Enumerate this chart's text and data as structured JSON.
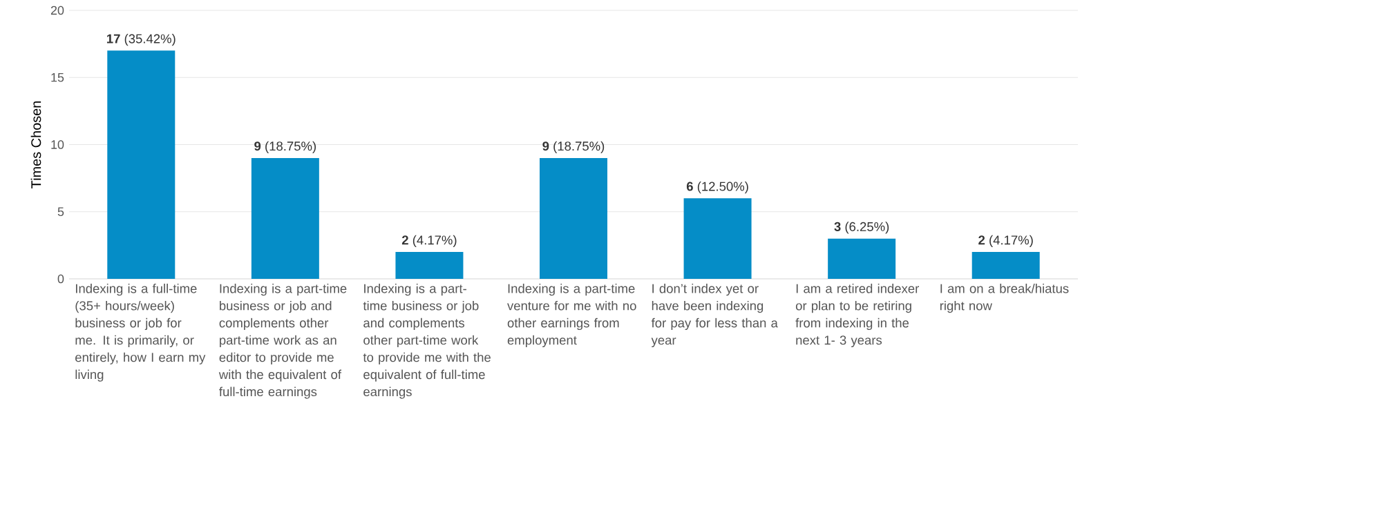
{
  "chart_data": {
    "type": "bar",
    "ylabel": "Times Chosen",
    "categories": [
      "Indexing is a full-time (35+ hours/week) business or job for me. It is primarily, or entirely, how I earn my living",
      "Indexing is a part-time business or job and complements other part-time work as an editor to provide me with the equivalent of full-time earnings",
      "Indexing is a part-time business or job and complements other part-time work to provide me with the equivalent of full-time earnings",
      "Indexing is a part-time venture for me with no other earnings from employment",
      "I don’t index yet or have been indexing for pay for less than a year",
      "I am a retired indexer or plan to be retiring from indexing in the next 1- 3 years",
      "I am on a break/hiatus right now"
    ],
    "values": [
      17,
      9,
      2,
      9,
      6,
      3,
      2
    ],
    "value_labels": [
      "**17** (35.42%)",
      "**9** (18.75%)",
      "**2** (4.17%)",
      "**9** (18.75%)",
      "**6** (12.50%)",
      "**3** (6.25%)",
      "**2** (4.17%)"
    ],
    "color": "#058dc7",
    "ylim": [
      0,
      20
    ],
    "yticks": [
      0,
      5,
      10,
      15,
      20
    ],
    "grid": "y"
  }
}
